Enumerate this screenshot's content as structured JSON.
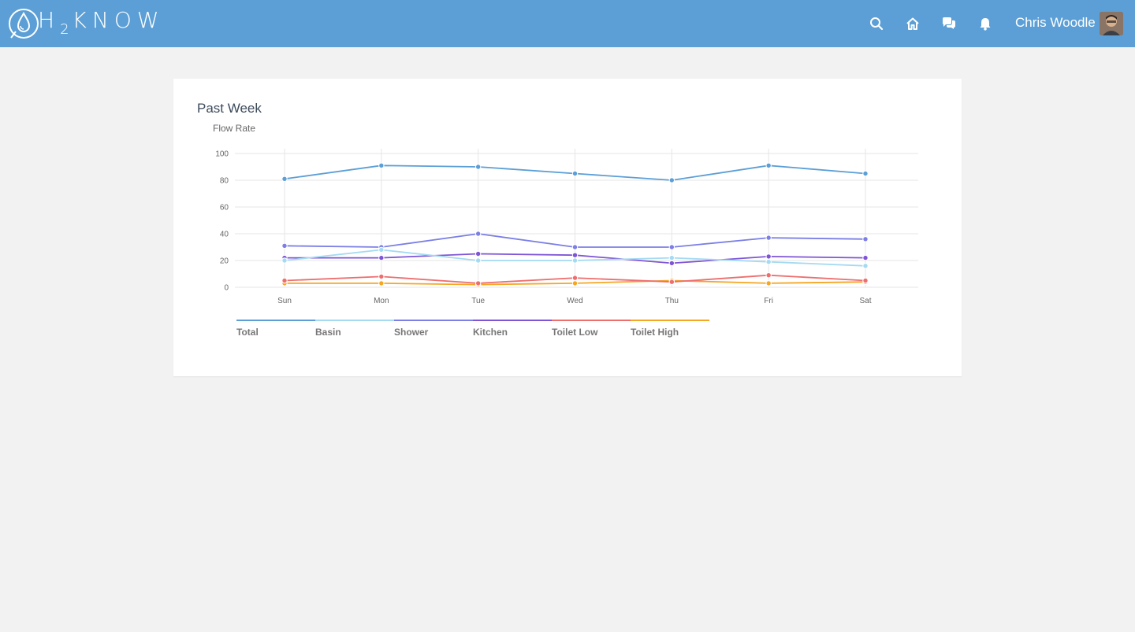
{
  "app": {
    "logo_text_main": "H",
    "logo_sub": "2",
    "logo_text_rest": "KNOW",
    "user_name": "Chris Woodle"
  },
  "nav": {
    "icons": [
      "search-icon",
      "home-icon",
      "chat-icon",
      "bell-icon"
    ]
  },
  "card": {
    "title": "Past Week"
  },
  "chart_data": {
    "type": "line",
    "title": "Flow Rate",
    "xlabel": "",
    "ylabel": "",
    "categories": [
      "Sun",
      "Mon",
      "Tue",
      "Wed",
      "Thu",
      "Fri",
      "Sat"
    ],
    "ylim": [
      0,
      100
    ],
    "yticks": [
      0,
      20,
      40,
      60,
      80,
      100
    ],
    "grid": true,
    "legend_position": "bottom",
    "series": [
      {
        "name": "Total",
        "color": "#5b9fd6",
        "values": [
          81,
          91,
          90,
          85,
          80,
          91,
          85
        ]
      },
      {
        "name": "Basin",
        "color": "#a4daf2",
        "values": [
          20,
          28,
          20,
          20,
          22,
          19,
          16
        ]
      },
      {
        "name": "Shower",
        "color": "#7b7fe6",
        "values": [
          31,
          30,
          40,
          30,
          30,
          37,
          36
        ]
      },
      {
        "name": "Kitchen",
        "color": "#7f55d6",
        "values": [
          22,
          22,
          25,
          24,
          18,
          23,
          22
        ]
      },
      {
        "name": "Toilet Low",
        "color": "#ee6e6e",
        "values": [
          5,
          8,
          3,
          7,
          4,
          9,
          5
        ]
      },
      {
        "name": "Toilet High",
        "color": "#f5a623",
        "values": [
          3,
          3,
          2,
          3,
          5,
          3,
          4
        ]
      }
    ]
  }
}
